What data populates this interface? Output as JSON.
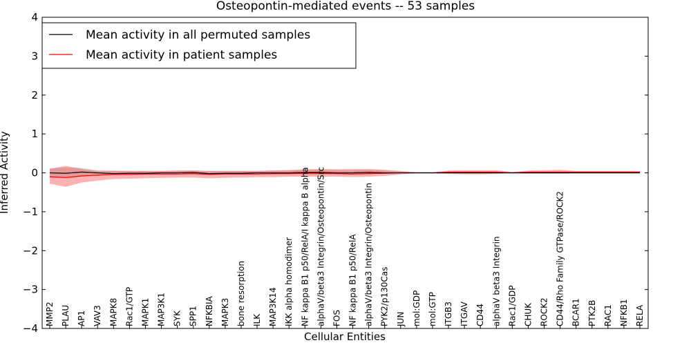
{
  "chart_data": {
    "type": "line",
    "title": "Osteopontin-mediated events -- 53 samples",
    "xlabel": "Cellular Entities",
    "ylabel": "Inferred Activity",
    "ylim": [
      -4,
      4
    ],
    "yticks": [
      -4,
      -3,
      -2,
      -1,
      0,
      1,
      2,
      3,
      4
    ],
    "ytick_labels": [
      "−4",
      "−3",
      "−2",
      "−1",
      "0",
      "1",
      "2",
      "3",
      "4"
    ],
    "legend_position": "top-left",
    "categories": [
      "MMP2",
      "PLAU",
      "AP1",
      "VAV3",
      "MAPK8",
      "Rac1/GTP",
      "MAPK1",
      "MAP3K1",
      "SYK",
      "SPP1",
      "NFKBIA",
      "MAPK3",
      "bone resorption",
      "ILK",
      "MAP3K14",
      "IKK alpha homodimer",
      "NF kappa B1 p50/RelA/I kappa B alpha",
      "alphaV/beta3 Integrin/Osteopontin/Src",
      "FOS",
      "NF kappa B1 p50/RelA",
      "alphaV/beta3 Integrin/Osteopontin",
      "PYK2/p130Cas",
      "JUN",
      "mol:GDP",
      "mol:GTP",
      "ITGB3",
      "ITGAV",
      "CD44",
      "alphaV beta3 Integrin",
      "Rac1/GDP",
      "CHUK",
      "ROCK2",
      "CD44/Rho Family GTPase/ROCK2",
      "BCAR1",
      "PTK2B",
      "RAC1",
      "NFKB1",
      "RELA"
    ],
    "series": [
      {
        "name": "Mean activity in all permuted samples",
        "color": "#000000",
        "values": [
          0.0,
          -0.01,
          0.02,
          0.0,
          -0.02,
          -0.01,
          -0.01,
          0.0,
          0.0,
          0.01,
          -0.02,
          -0.01,
          -0.01,
          0.0,
          0.0,
          0.0,
          0.01,
          0.01,
          0.0,
          0.0,
          0.01,
          0.0,
          0.0,
          0.0,
          0.0,
          0.0,
          0.0,
          0.0,
          0.0,
          0.0,
          0.0,
          0.0,
          0.0,
          0.0,
          0.0,
          0.0,
          0.0,
          0.0
        ],
        "band_lower": [
          -0.12,
          -0.14,
          -0.1,
          -0.07,
          -0.06,
          -0.05,
          -0.05,
          -0.04,
          -0.04,
          -0.04,
          -0.06,
          -0.05,
          -0.04,
          -0.04,
          -0.04,
          -0.04,
          -0.05,
          -0.05,
          -0.04,
          -0.04,
          -0.04,
          -0.02,
          -0.01,
          -0.01,
          -0.01,
          -0.01,
          -0.01,
          -0.01,
          -0.01,
          -0.01,
          -0.01,
          -0.01,
          -0.01,
          -0.01,
          -0.01,
          -0.01,
          -0.01,
          -0.01
        ],
        "band_upper": [
          0.12,
          0.14,
          0.13,
          0.07,
          0.06,
          0.05,
          0.05,
          0.05,
          0.05,
          0.06,
          0.05,
          0.05,
          0.05,
          0.05,
          0.06,
          0.07,
          0.08,
          0.08,
          0.07,
          0.07,
          0.08,
          0.06,
          0.03,
          0.01,
          0.01,
          0.01,
          0.01,
          0.01,
          0.01,
          0.01,
          0.01,
          0.01,
          0.01,
          0.01,
          0.01,
          0.01,
          0.01,
          0.01
        ]
      },
      {
        "name": "Mean activity in patient samples",
        "color": "#ff0000",
        "values": [
          -0.1,
          -0.12,
          -0.08,
          -0.06,
          -0.04,
          -0.04,
          -0.03,
          -0.03,
          -0.03,
          -0.02,
          -0.04,
          -0.03,
          -0.03,
          -0.03,
          -0.02,
          -0.02,
          -0.01,
          -0.01,
          -0.02,
          -0.03,
          -0.02,
          -0.01,
          0.0,
          0.0,
          0.0,
          0.02,
          0.02,
          0.02,
          0.02,
          0.0,
          0.02,
          0.02,
          0.02,
          0.02,
          0.02,
          0.02,
          0.02,
          0.02
        ],
        "band_lower": [
          -0.28,
          -0.36,
          -0.25,
          -0.2,
          -0.16,
          -0.15,
          -0.14,
          -0.13,
          -0.12,
          -0.12,
          -0.14,
          -0.13,
          -0.12,
          -0.11,
          -0.11,
          -0.1,
          -0.1,
          -0.1,
          -0.1,
          -0.11,
          -0.1,
          -0.08,
          -0.04,
          -0.01,
          -0.01,
          -0.03,
          -0.04,
          -0.04,
          -0.03,
          -0.01,
          -0.02,
          -0.02,
          -0.02,
          -0.01,
          -0.01,
          -0.01,
          -0.01,
          -0.01
        ],
        "band_upper": [
          0.1,
          0.18,
          0.1,
          0.05,
          0.05,
          0.05,
          0.05,
          0.05,
          0.06,
          0.06,
          0.05,
          0.05,
          0.05,
          0.05,
          0.06,
          0.07,
          0.09,
          0.1,
          0.09,
          0.1,
          0.1,
          0.08,
          0.05,
          0.01,
          0.01,
          0.06,
          0.07,
          0.07,
          0.07,
          0.02,
          0.06,
          0.07,
          0.08,
          0.05,
          0.05,
          0.05,
          0.05,
          0.05
        ]
      }
    ]
  }
}
